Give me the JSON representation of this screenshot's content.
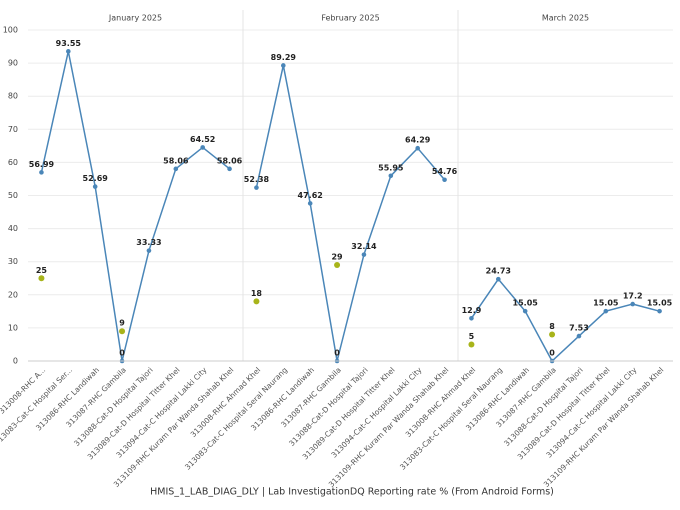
{
  "chart_data": {
    "type": "line",
    "x_label": "HMIS_1_LAB_DIAG_DLY | Lab InvestigationDQ Reporting rate % (From Android Forms)",
    "ylim": [
      0,
      100
    ],
    "yticks": [
      0,
      10,
      20,
      30,
      40,
      50,
      60,
      70,
      80,
      90,
      100
    ],
    "grid": true,
    "panels": [
      {
        "title": "January 2025",
        "categories": [
          "313008-RHC A...",
          "313083-Cat-C Hospital Ser...",
          "313086-RHC Landiwah",
          "313087-RHC Gambila",
          "313088-Cat-D Hospital Tajori",
          "313089-Cat-D Hospital Titter Khel",
          "313094-Cat-C Hospital Lakki City",
          "313109-RHC Kuram Par Wanda Shahab Khel"
        ],
        "series": [
          {
            "type": "line",
            "color": "#4a86b8",
            "values": [
              56.99,
              93.55,
              52.69,
              0,
              33.33,
              58.06,
              64.52,
              58.06
            ]
          },
          {
            "type": "scatter",
            "color": "#a8b41a",
            "values": [
              25,
              null,
              null,
              9,
              null,
              null,
              null,
              null
            ]
          }
        ]
      },
      {
        "title": "February 2025",
        "categories": [
          "313008-RHC Ahmad Khel",
          "313083-Cat-C Hospital Seral Naurang",
          "313086-RHC Landiwah",
          "313087-RHC Gambila",
          "313088-Cat-D Hospital Tajori",
          "313089-Cat-D Hospital Titter Khel",
          "313094-Cat-C Hospital Lakki City",
          "313109-RHC Kuram Par Wanda Shahab Khel"
        ],
        "series": [
          {
            "type": "line",
            "color": "#4a86b8",
            "values": [
              52.38,
              89.29,
              47.62,
              0,
              32.14,
              55.95,
              64.29,
              54.76
            ]
          },
          {
            "type": "scatter",
            "color": "#a8b41a",
            "values": [
              18,
              null,
              null,
              29,
              null,
              null,
              null,
              null
            ]
          }
        ]
      },
      {
        "title": "March 2025",
        "categories": [
          "313008-RHC Ahmad Khel",
          "313083-Cat-C Hospital Seral Naurang",
          "313086-RHC Landiwah",
          "313087-RHC Gambila",
          "313088-Cat-D Hospital Tajori",
          "313089-Cat-D Hospital Titter Khel",
          "313094-Cat-C Hospital Lakki City",
          "313109-RHC Kuram Par Wanda Shahab Khel"
        ],
        "series": [
          {
            "type": "line",
            "color": "#4a86b8",
            "values": [
              12.9,
              24.73,
              15.05,
              0,
              7.53,
              15.05,
              17.2,
              15.05
            ]
          },
          {
            "type": "scatter",
            "color": "#a8b41a",
            "values": [
              5,
              null,
              null,
              8,
              null,
              null,
              null,
              null
            ]
          }
        ]
      }
    ]
  }
}
